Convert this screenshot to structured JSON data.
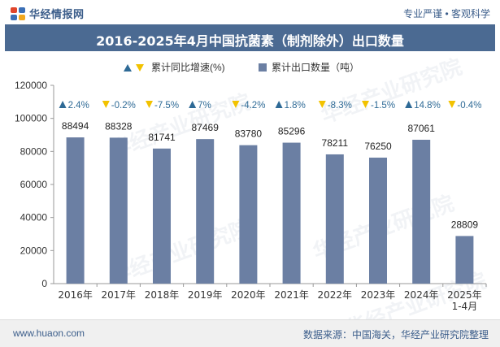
{
  "header": {
    "brand": "华经情报网",
    "tagline": "专业严谨 • 客观科学"
  },
  "title": "2016-2025年4月中国抗菌素（制剂除外）出口数量",
  "legend": {
    "growth_label": "累计同比增速(%)",
    "export_label": "累计出口数量（吨）"
  },
  "footer": {
    "url": "www.huaon.com",
    "source": "数据来源：中国海关，华经产业研究院整理"
  },
  "watermark": "华经产业研究院",
  "colors": {
    "bar": "#6b7fa3",
    "up": "#2e6a96",
    "down": "#f2c200",
    "growth_text": "#2e6a96",
    "title_bg": "#4b6a92"
  },
  "chart_data": {
    "type": "bar",
    "categories": [
      "2016年",
      "2017年",
      "2018年",
      "2019年",
      "2020年",
      "2021年",
      "2022年",
      "2023年",
      "2024年",
      "2025年\n1-4月"
    ],
    "series": [
      {
        "name": "累计出口数量（吨）",
        "values": [
          88494,
          88328,
          81741,
          87469,
          83780,
          85296,
          78211,
          76250,
          87061,
          28809
        ]
      },
      {
        "name": "累计同比增速(%)",
        "values": [
          2.4,
          -0.2,
          -7.5,
          7,
          -4.2,
          1.8,
          -8.3,
          -1.5,
          14.8,
          -0.4
        ],
        "labels": [
          "2.4%",
          "-0.2%",
          "-7.5%",
          "7%",
          "-4.2%",
          "1.8%",
          "-8.3%",
          "-1.5%",
          "14.8%",
          "-0.4%"
        ]
      }
    ],
    "yticks": [
      "0",
      "20000",
      "40000",
      "60000",
      "80000",
      "100000",
      "120000"
    ],
    "ylim": [
      0,
      120000
    ]
  }
}
